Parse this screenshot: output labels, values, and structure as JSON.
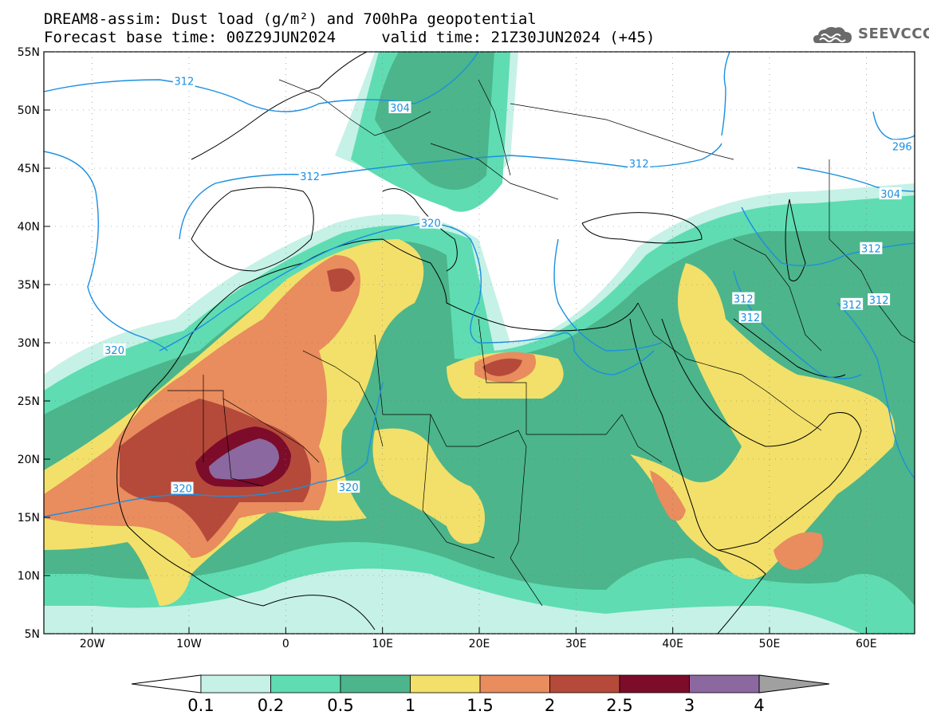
{
  "header": {
    "title_line1": "DREAM8-assim: Dust load (g/m²) and 700hPa geopotential",
    "title_line2": "Forecast base time: 00Z29JUN2024     valid time: 21Z30JUN2024 (+45)",
    "logo_text": "SEEVCCC",
    "logo_icon": "cloud-logo-icon"
  },
  "map": {
    "lat_labels": [
      "55N",
      "50N",
      "45N",
      "40N",
      "35N",
      "30N",
      "25N",
      "20N",
      "15N",
      "10N",
      "5N"
    ],
    "lat_values": [
      55,
      50,
      45,
      40,
      35,
      30,
      25,
      20,
      15,
      10,
      5
    ],
    "lon_labels": [
      "20W",
      "10W",
      "0",
      "10E",
      "20E",
      "30E",
      "40E",
      "50E",
      "60E"
    ],
    "lon_values": [
      -20,
      -10,
      0,
      10,
      20,
      30,
      40,
      50,
      60
    ],
    "extent": {
      "lon_min": -25,
      "lon_max": 65,
      "lat_min": 5,
      "lat_max": 55
    },
    "contour_labels": [
      {
        "text": "312",
        "lon": -10.5,
        "lat": 52.5
      },
      {
        "text": "304",
        "lon": 11.8,
        "lat": 50.2
      },
      {
        "text": "312",
        "lon": 2.5,
        "lat": 44.3
      },
      {
        "text": "312",
        "lon": 36.5,
        "lat": 45.4
      },
      {
        "text": "296",
        "lon": 63.7,
        "lat": 46.9
      },
      {
        "text": "304",
        "lon": 62.5,
        "lat": 42.8
      },
      {
        "text": "320",
        "lon": 15,
        "lat": 40.3
      },
      {
        "text": "312",
        "lon": 60.5,
        "lat": 38.1
      },
      {
        "text": "312",
        "lon": 47.3,
        "lat": 33.8
      },
      {
        "text": "312",
        "lon": 48,
        "lat": 32.2
      },
      {
        "text": "312",
        "lon": 58.5,
        "lat": 33.3
      },
      {
        "text": "312",
        "lon": 61.3,
        "lat": 33.7
      },
      {
        "text": "320",
        "lon": -17.7,
        "lat": 29.4
      },
      {
        "text": "320",
        "lon": -10.7,
        "lat": 17.5
      },
      {
        "text": "320",
        "lon": 6.5,
        "lat": 17.6
      }
    ]
  },
  "colorbar": {
    "labels": [
      "0.1",
      "0.2",
      "0.5",
      "1",
      "1.5",
      "2",
      "2.5",
      "3",
      "4"
    ],
    "colors": [
      "#c6f1e6",
      "#5fdcb2",
      "#4cb58b",
      "#f2e06a",
      "#e98c5e",
      "#b54a3a",
      "#7c0c2a",
      "#8c68a0"
    ],
    "under_color": "#ffffff",
    "over_color": "#a0a0a0"
  },
  "levels": {
    "colors": {
      "c01": "#c6f1e6",
      "c02": "#5fdcb2",
      "c05": "#4cb58b",
      "c10": "#f2e06a",
      "c15": "#e98c5e",
      "c20": "#b54a3a",
      "c25": "#7c0c2a",
      "c30": "#8c68a0"
    },
    "contour_color": "#1b8fe0",
    "border_color": "#000000"
  }
}
